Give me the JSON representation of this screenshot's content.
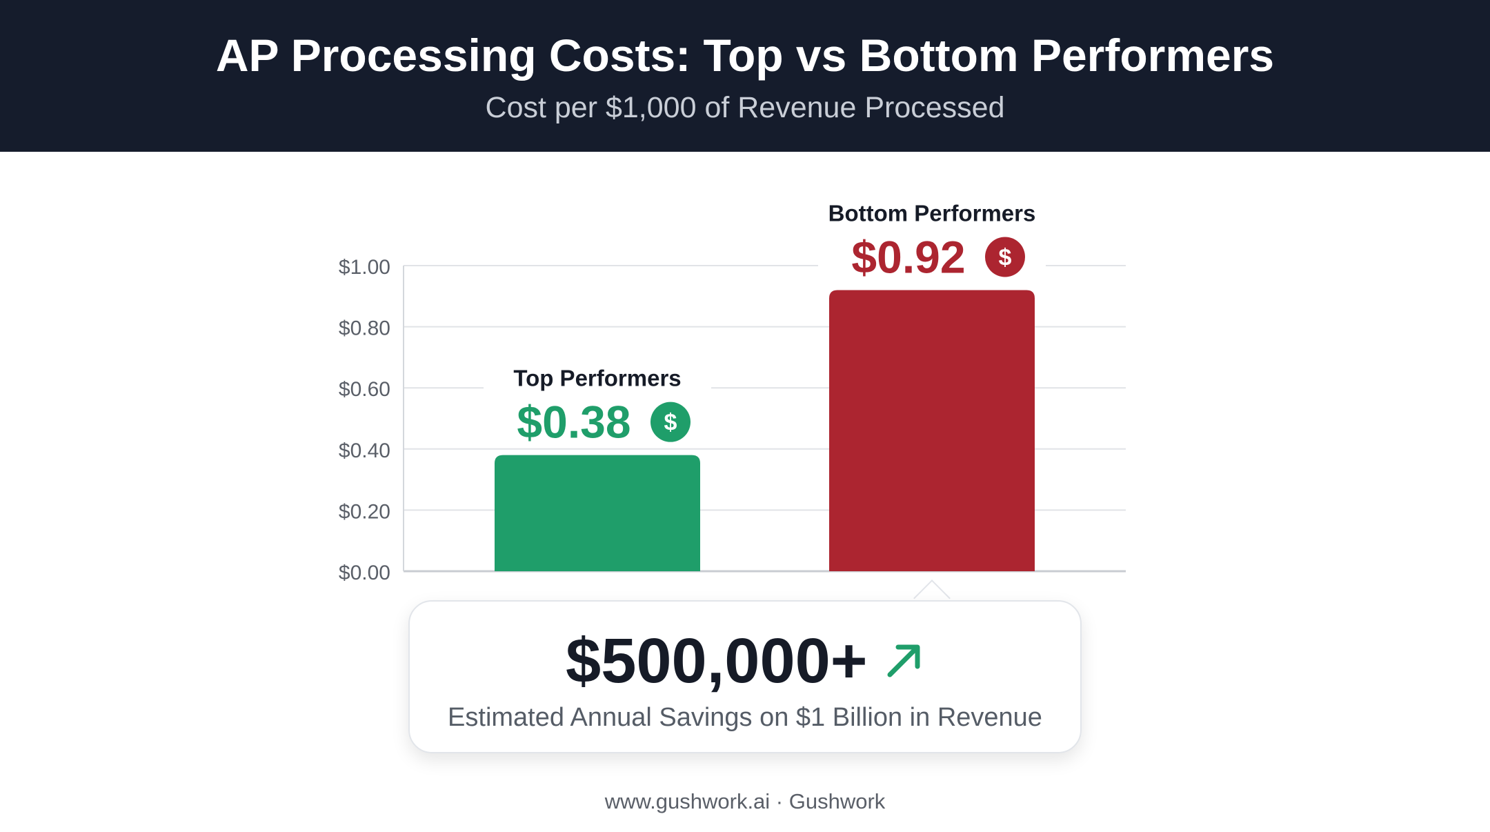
{
  "header": {
    "title": "AP Processing Costs: Top vs Bottom Performers",
    "subtitle": "Cost per $1,000 of Revenue Processed"
  },
  "chart_data": {
    "type": "bar",
    "categories": [
      "Top Performers",
      "Bottom Performers"
    ],
    "values": [
      0.38,
      0.92
    ],
    "value_labels": [
      "$0.38",
      "$0.92"
    ],
    "bar_colors": [
      "#1f9e6a",
      "#ac2530"
    ],
    "yticks": [
      "$0.00",
      "$0.20",
      "$0.40",
      "$0.60",
      "$0.80",
      "$1.00"
    ],
    "ylim": [
      0,
      1.0
    ],
    "grid": true,
    "xlabel": "",
    "ylabel": "",
    "icon": "dollar-circle-icon"
  },
  "callout": {
    "value": "$500,000+",
    "caption": "Estimated Annual Savings on $1 Billion in Revenue",
    "icon": "trend-up-arrow-icon",
    "accent": "#1f9e6a"
  },
  "footer": {
    "text": "www.gushwork.ai · Gushwork"
  }
}
